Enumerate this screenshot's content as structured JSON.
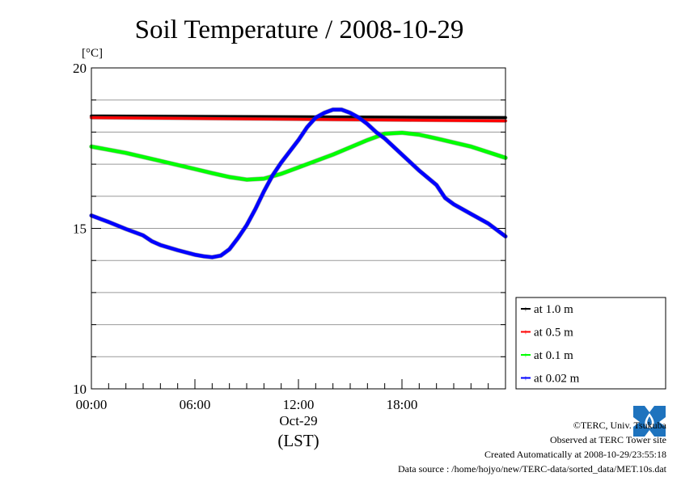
{
  "chart_data": {
    "type": "line",
    "title": "Soil Temperature / 2008-10-29",
    "ylabel": "[°C]",
    "xlabel": "(LST)",
    "date_label": "Oct-29",
    "ylim": [
      10,
      20
    ],
    "y_ticks": [
      10,
      15,
      20
    ],
    "y_minor_step": 1,
    "xlim": [
      0,
      24
    ],
    "x_ticks": [
      {
        "value": 0,
        "label": "00:00"
      },
      {
        "value": 6,
        "label": "06:00"
      },
      {
        "value": 12,
        "label": "12:00"
      },
      {
        "value": 18,
        "label": "18:00"
      }
    ],
    "grid": true,
    "legend_position": "bottom-right",
    "series": [
      {
        "name": "at 1.0 m",
        "color": "#000000",
        "x": [
          0,
          24
        ],
        "y": [
          18.5,
          18.45
        ]
      },
      {
        "name": "at 0.5 m",
        "color": "#ff0000",
        "x": [
          0,
          24
        ],
        "y": [
          18.45,
          18.35
        ]
      },
      {
        "name": "at 0.1 m",
        "color": "#00ff00",
        "x": [
          0,
          2,
          4,
          6,
          7,
          8,
          9,
          10,
          11,
          12,
          14,
          16,
          17,
          18,
          19,
          20,
          22,
          24
        ],
        "y": [
          17.55,
          17.35,
          17.1,
          16.85,
          16.72,
          16.6,
          16.52,
          16.55,
          16.7,
          16.9,
          17.3,
          17.75,
          17.95,
          17.98,
          17.92,
          17.8,
          17.55,
          17.2
        ]
      },
      {
        "name": "at 0.02 m",
        "color": "#0000ff",
        "x": [
          0,
          1,
          2,
          3,
          3.5,
          4,
          5,
          6,
          6.5,
          7,
          7.5,
          8,
          8.5,
          9,
          9.5,
          10,
          10.5,
          11,
          11.5,
          12,
          12.5,
          13,
          13.5,
          14,
          14.5,
          15,
          15.5,
          16,
          16.5,
          17,
          18,
          19,
          20,
          20.5,
          21,
          22,
          23,
          24
        ],
        "y": [
          15.4,
          15.2,
          14.98,
          14.78,
          14.6,
          14.48,
          14.32,
          14.18,
          14.13,
          14.1,
          14.15,
          14.35,
          14.7,
          15.1,
          15.6,
          16.15,
          16.65,
          17.05,
          17.4,
          17.75,
          18.15,
          18.45,
          18.6,
          18.7,
          18.7,
          18.6,
          18.45,
          18.25,
          18.0,
          17.8,
          17.3,
          16.8,
          16.35,
          15.95,
          15.75,
          15.45,
          15.15,
          14.75
        ]
      }
    ]
  },
  "credits": {
    "copyright": "©TERC, Univ. Tsukuba",
    "site": "Observed at TERC Tower site",
    "created": "Created Automatically at 2008-10-29/23:55:18",
    "source": "Data source : /home/hojyo/new/TERC-data/sorted_data/MET.10s.dat"
  }
}
